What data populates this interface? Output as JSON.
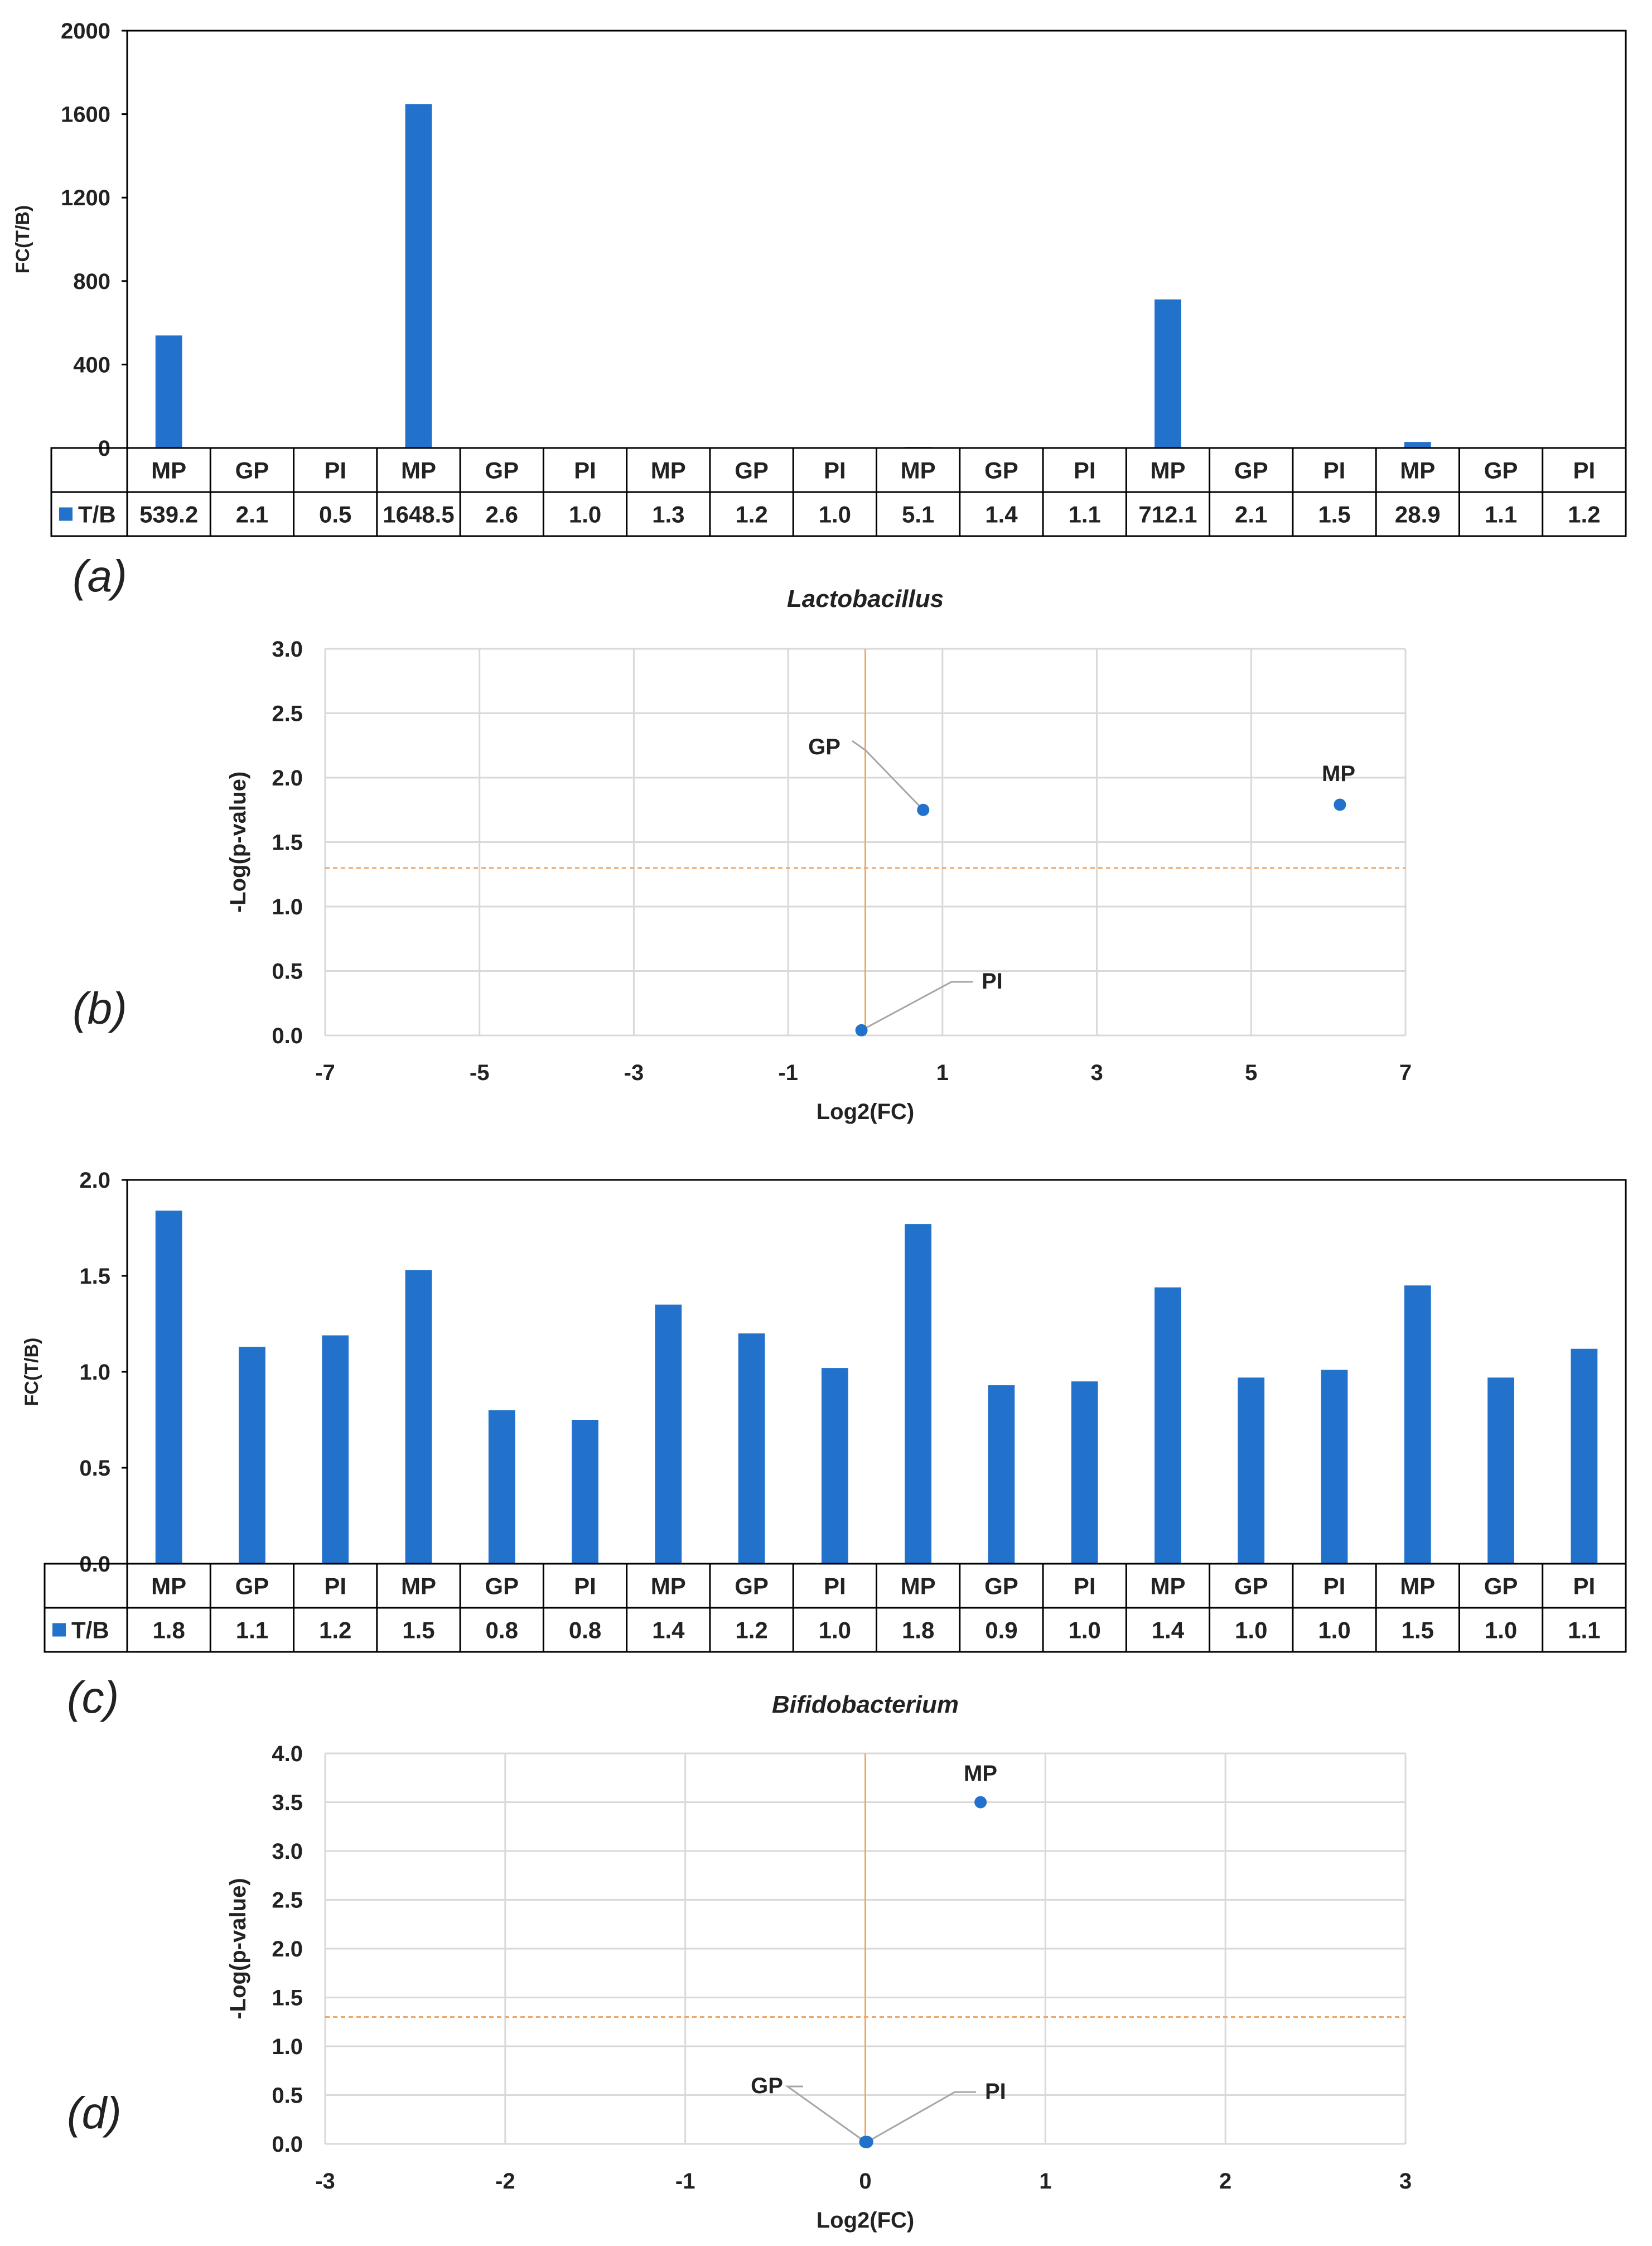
{
  "colors": {
    "bar": "#2272cc",
    "axis": "#000000",
    "grid": "#d9d9d9",
    "threshold": "#f0a868",
    "label": "#222222",
    "leader": "#a6a6a6"
  },
  "panel_labels": [
    "(a)",
    "(b)",
    "(c)",
    "(d)"
  ],
  "chart_data": [
    {
      "id": "a",
      "type": "bar",
      "title": "",
      "ylabel": "FC(T/B)",
      "xlabel": "",
      "ylim": [
        0,
        2000
      ],
      "yticks": [
        0,
        400,
        800,
        1200,
        1600,
        2000
      ],
      "ytick_labels": [
        "0",
        "400",
        "800",
        "1200",
        "1600",
        "2000"
      ],
      "categories": [
        "MP",
        "GP",
        "PI",
        "MP",
        "GP",
        "PI",
        "MP",
        "GP",
        "PI",
        "MP",
        "GP",
        "PI",
        "MP",
        "GP",
        "PI",
        "MP",
        "GP",
        "PI"
      ],
      "series": [
        {
          "name": "T/B",
          "values": [
            539.2,
            2.1,
            0.5,
            1648.5,
            2.6,
            1.0,
            1.3,
            1.2,
            1.0,
            5.1,
            1.4,
            1.1,
            712.1,
            2.1,
            1.5,
            28.9,
            1.1,
            1.2
          ]
        }
      ],
      "table_labels": [
        "539.2",
        "2.1",
        "0.5",
        "1648.5",
        "2.6",
        "1.0",
        "1.3",
        "1.2",
        "1.0",
        "5.1",
        "1.4",
        "1.1",
        "712.1",
        "2.1",
        "1.5",
        "28.9",
        "1.1",
        "1.2"
      ]
    },
    {
      "id": "b",
      "type": "scatter",
      "title": "Lactobacillus",
      "xlabel": "Log2(FC)",
      "ylabel": "-Log(p-value)",
      "xlim": [
        -7,
        7
      ],
      "ylim": [
        0,
        3
      ],
      "xticks": [
        -7,
        -5,
        -3,
        -1,
        1,
        3,
        5,
        7
      ],
      "xtick_labels": [
        "-7",
        "-5",
        "-3",
        "-1",
        "1",
        "3",
        "5",
        "7"
      ],
      "yticks": [
        0,
        0.5,
        1,
        1.5,
        2,
        2.5,
        3
      ],
      "ytick_labels": [
        "0.0",
        "0.5",
        "1.0",
        "1.5",
        "2.0",
        "2.5",
        "3.0"
      ],
      "threshold_y": 1.3,
      "vline_x": 0,
      "points": [
        {
          "label": "GP",
          "x": 0.75,
          "y": 1.75
        },
        {
          "label": "MP",
          "x": 6.15,
          "y": 1.79
        },
        {
          "label": "PI",
          "x": -0.05,
          "y": 0.04
        }
      ]
    },
    {
      "id": "c",
      "type": "bar",
      "title": "",
      "ylabel": "FC(T/B)",
      "xlabel": "",
      "ylim": [
        0,
        2
      ],
      "yticks": [
        0,
        0.5,
        1,
        1.5,
        2
      ],
      "ytick_labels": [
        "0.0",
        "0.5",
        "1.0",
        "1.5",
        "2.0"
      ],
      "categories": [
        "MP",
        "GP",
        "PI",
        "MP",
        "GP",
        "PI",
        "MP",
        "GP",
        "PI",
        "MP",
        "GP",
        "PI",
        "MP",
        "GP",
        "PI",
        "MP",
        "GP",
        "PI"
      ],
      "series": [
        {
          "name": "T/B",
          "values": [
            1.84,
            1.13,
            1.19,
            1.53,
            0.8,
            0.75,
            1.35,
            1.2,
            1.02,
            1.77,
            0.93,
            0.95,
            1.44,
            0.97,
            1.01,
            1.45,
            0.97,
            1.12
          ]
        }
      ],
      "table_labels": [
        "1.8",
        "1.1",
        "1.2",
        "1.5",
        "0.8",
        "0.8",
        "1.4",
        "1.2",
        "1.0",
        "1.8",
        "0.9",
        "1.0",
        "1.4",
        "1.0",
        "1.0",
        "1.5",
        "1.0",
        "1.1"
      ]
    },
    {
      "id": "d",
      "type": "scatter",
      "title": "Bifidobacterium",
      "xlabel": "Log2(FC)",
      "ylabel": "-Log(p-value)",
      "xlim": [
        -3,
        3
      ],
      "ylim": [
        0,
        4
      ],
      "xticks": [
        -3,
        -2,
        -1,
        0,
        1,
        2,
        3
      ],
      "xtick_labels": [
        "-3",
        "-2",
        "-1",
        "0",
        "1",
        "2",
        "3"
      ],
      "yticks": [
        0,
        0.5,
        1,
        1.5,
        2,
        2.5,
        3,
        3.5,
        4
      ],
      "ytick_labels": [
        "0.0",
        "0.5",
        "1.0",
        "1.5",
        "2.0",
        "2.5",
        "3.0",
        "3.5",
        "4.0"
      ],
      "threshold_y": 1.3,
      "vline_x": 0,
      "points": [
        {
          "label": "MP",
          "x": 0.64,
          "y": 3.5
        },
        {
          "label": "GP",
          "x": 0.0,
          "y": 0.02
        },
        {
          "label": "PI",
          "x": 0.01,
          "y": 0.02
        }
      ]
    }
  ]
}
